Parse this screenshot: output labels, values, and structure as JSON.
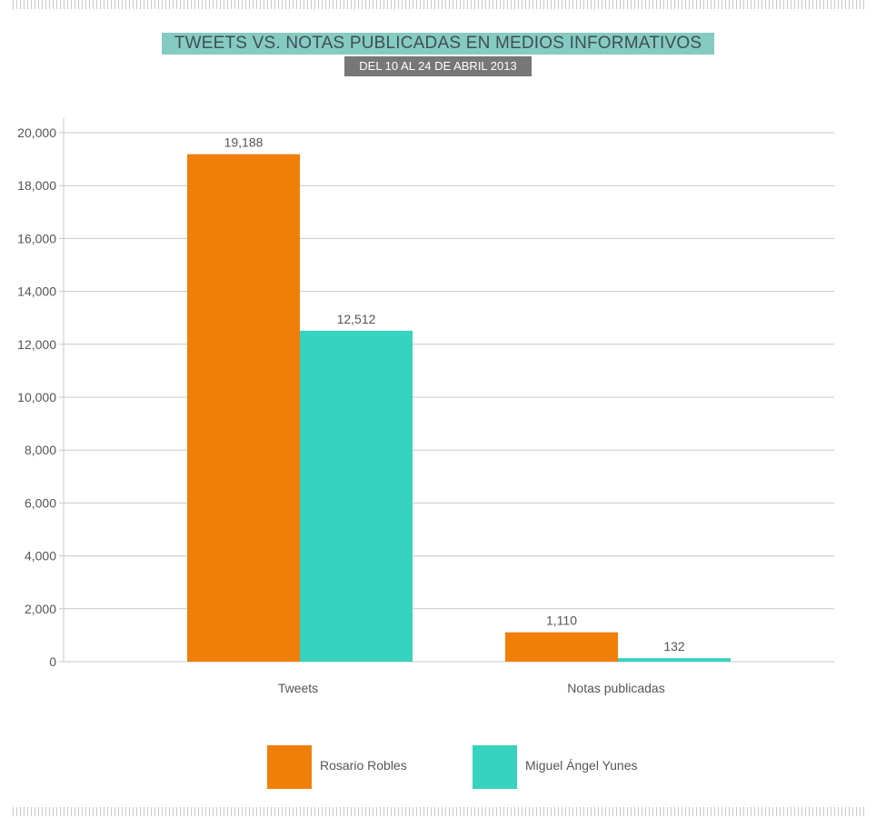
{
  "header": {
    "title": "TWEETS VS. NOTAS PUBLICADAS EN MEDIOS INFORMATIVOS",
    "subtitle": "DEL 10 AL 24 DE ABRIL 2013"
  },
  "chart_data": {
    "type": "bar",
    "title": "TWEETS VS. NOTAS PUBLICADAS EN MEDIOS INFORMATIVOS",
    "subtitle": "DEL 10 AL 24 DE ABRIL 2013",
    "categories": [
      "Tweets",
      "Notas publicadas"
    ],
    "series": [
      {
        "name": "Rosario Robles",
        "values": [
          19188,
          1110
        ],
        "labels": [
          "19,188",
          "1,110"
        ],
        "color": "#f07f09"
      },
      {
        "name": "Miguel Ángel Yunes",
        "values": [
          12512,
          132
        ],
        "labels": [
          "12,512",
          "132"
        ],
        "color": "#37d3be"
      }
    ],
    "yticks": [
      0,
      2000,
      4000,
      6000,
      8000,
      10000,
      12000,
      14000,
      16000,
      18000,
      20000
    ],
    "ytick_labels": [
      "0",
      "2,000",
      "4,000",
      "6,000",
      "8,000",
      "10,000",
      "12,000",
      "14,000",
      "16,000",
      "18,000",
      "20,000"
    ],
    "ylim": [
      0,
      20000
    ],
    "grid": true,
    "legend": "bottom",
    "xlabel": "",
    "ylabel": ""
  },
  "colors": {
    "title_bg": "#86cbc1",
    "subtitle_bg": "#777777",
    "grid": "#c8c8c8"
  }
}
